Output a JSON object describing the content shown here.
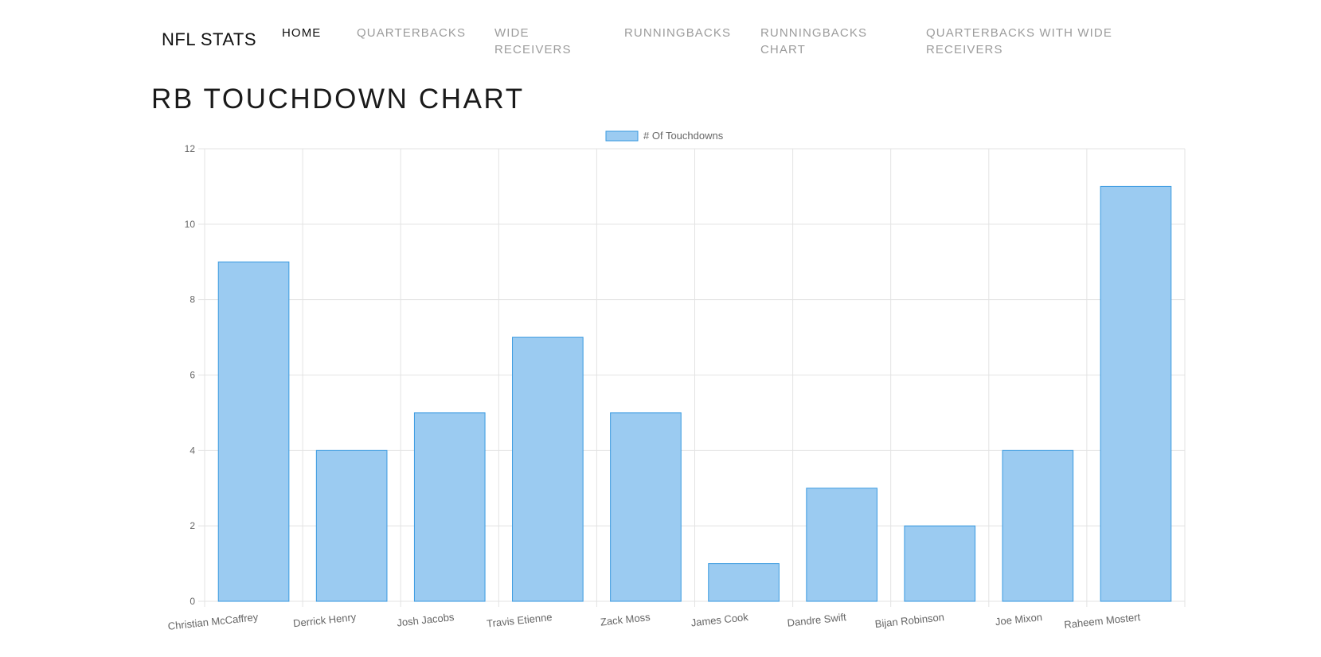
{
  "nav": {
    "brand": "NFL STATS",
    "links": [
      {
        "label": "HOME",
        "active": true
      },
      {
        "label": "QUARTERBACKS",
        "active": false
      },
      {
        "label": "WIDE RECEIVERS",
        "active": false
      },
      {
        "label": "RUNNINGBACKS",
        "active": false
      },
      {
        "label": "RUNNINGBACKS CHART",
        "active": false
      },
      {
        "label": "QUARTERBACKS WITH WIDE RECEIVERS",
        "active": false
      }
    ]
  },
  "page": {
    "title": "RB TOUCHDOWN CHART"
  },
  "chart_data": {
    "type": "bar",
    "categories": [
      "Christian McCaffrey",
      "Derrick Henry",
      "Josh Jacobs",
      "Travis Etienne",
      "Zack Moss",
      "James Cook",
      "Dandre Swift",
      "Bijan Robinson",
      "Joe Mixon",
      "Raheem Mostert"
    ],
    "series": [
      {
        "name": "# Of Touchdowns",
        "values": [
          9,
          4,
          5,
          7,
          5,
          1,
          3,
          2,
          4,
          11
        ],
        "fill": "#9bcbf1",
        "stroke": "#3a9ae0"
      }
    ],
    "ylim": [
      0,
      12
    ],
    "yticks": [
      "0",
      "2",
      "4",
      "6",
      "8",
      "10",
      "12"
    ],
    "grid": true,
    "legend": "top-center"
  }
}
